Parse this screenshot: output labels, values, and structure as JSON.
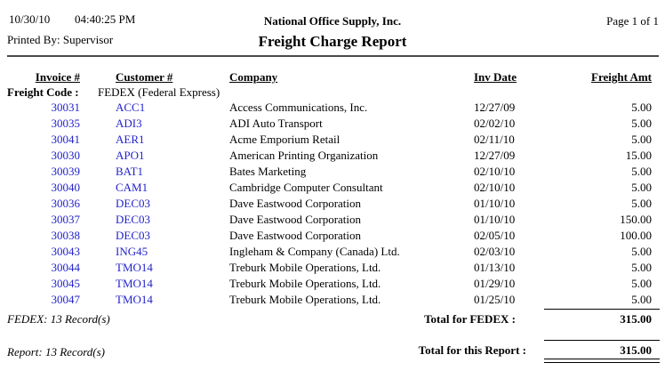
{
  "page_header": {
    "date": "10/30/10",
    "time": "04:40:25 PM",
    "printed_by": "Printed By: Supervisor",
    "company_name": "National Office Supply, Inc.",
    "report_title": "Freight Charge Report",
    "page_indicator": "Page 1 of 1"
  },
  "colors": {
    "background": "#FFFFFF",
    "text": "#000000",
    "link_blue": "#2222CC"
  },
  "table": {
    "columns": {
      "invoice": "Invoice #",
      "customer": "Customer #",
      "company": "Company",
      "inv_date": "Inv Date",
      "freight_amt": "Freight Amt"
    },
    "group_header": {
      "label": "Freight Code :",
      "value": "FEDEX (Federal Express)"
    },
    "rows": [
      {
        "invoice": "30031",
        "customer": "ACC1",
        "company": "Access Communications, Inc.",
        "inv_date": "12/27/09",
        "freight_amt": "5.00"
      },
      {
        "invoice": "30035",
        "customer": "ADI3",
        "company": "ADI Auto Transport",
        "inv_date": "02/02/10",
        "freight_amt": "5.00"
      },
      {
        "invoice": "30041",
        "customer": "AER1",
        "company": "Acme Emporium Retail",
        "inv_date": "02/11/10",
        "freight_amt": "5.00"
      },
      {
        "invoice": "30030",
        "customer": "APO1",
        "company": "American Printing Organization",
        "inv_date": "12/27/09",
        "freight_amt": "15.00"
      },
      {
        "invoice": "30039",
        "customer": "BAT1",
        "company": "Bates Marketing",
        "inv_date": "02/10/10",
        "freight_amt": "5.00"
      },
      {
        "invoice": "30040",
        "customer": "CAM1",
        "company": "Cambridge Computer Consultant",
        "inv_date": "02/10/10",
        "freight_amt": "5.00"
      },
      {
        "invoice": "30036",
        "customer": "DEC03",
        "company": "Dave Eastwood Corporation",
        "inv_date": "01/10/10",
        "freight_amt": "5.00"
      },
      {
        "invoice": "30037",
        "customer": "DEC03",
        "company": "Dave Eastwood Corporation",
        "inv_date": "01/10/10",
        "freight_amt": "150.00"
      },
      {
        "invoice": "30038",
        "customer": "DEC03",
        "company": "Dave Eastwood Corporation",
        "inv_date": "02/05/10",
        "freight_amt": "100.00"
      },
      {
        "invoice": "30043",
        "customer": "ING45",
        "company": "Ingleham & Company (Canada) Ltd.",
        "inv_date": "02/03/10",
        "freight_amt": "5.00"
      },
      {
        "invoice": "30044",
        "customer": "TMO14",
        "company": "Treburk Mobile Operations, Ltd.",
        "inv_date": "01/13/10",
        "freight_amt": "5.00"
      },
      {
        "invoice": "30045",
        "customer": "TMO14",
        "company": "Treburk Mobile Operations, Ltd.",
        "inv_date": "01/29/10",
        "freight_amt": "5.00"
      },
      {
        "invoice": "30047",
        "customer": "TMO14",
        "company": "Treburk Mobile Operations, Ltd.",
        "inv_date": "01/25/10",
        "freight_amt": "5.00"
      }
    ],
    "group_footer": {
      "record_count": "FEDEX: 13 Record(s)",
      "total_label": "Total for FEDEX :",
      "total_value": "315.00"
    },
    "report_footer": {
      "record_count": "Report: 13 Record(s)",
      "total_label": "Total for this Report :",
      "total_value": "315.00"
    }
  }
}
